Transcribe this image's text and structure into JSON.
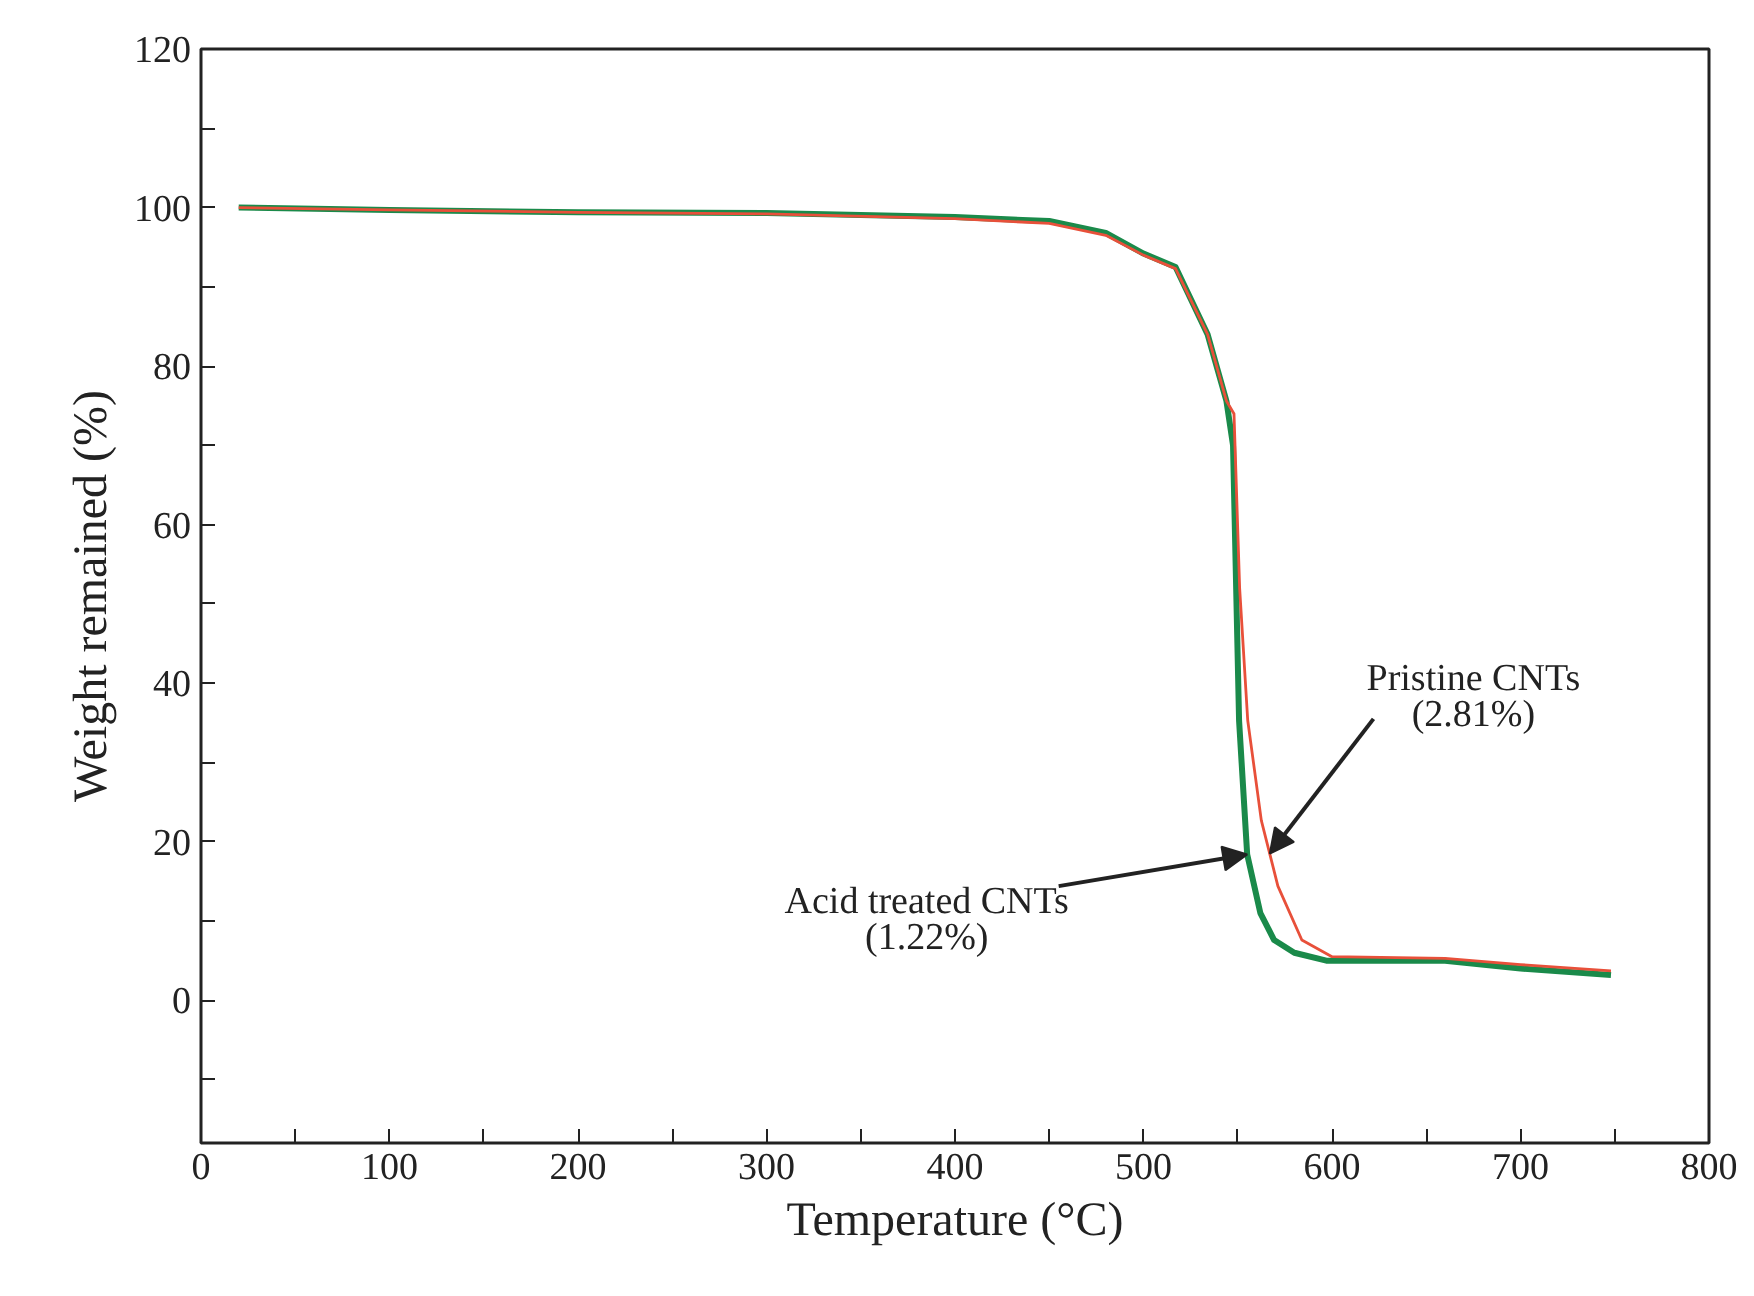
{
  "chart_data": {
    "type": "line",
    "xlabel": "Temperature (°C)",
    "ylabel": "Weight remained (%)",
    "xlim": [
      0,
      800
    ],
    "ylim": [
      -18,
      120
    ],
    "xticks": [
      0,
      {
        "value": 50,
        "label": null
      },
      100,
      {
        "value": 150,
        "label": null
      },
      200,
      {
        "value": 250,
        "label": null
      },
      300,
      {
        "value": 350,
        "label": null
      },
      400,
      {
        "value": 450,
        "label": null
      },
      500,
      {
        "value": 550,
        "label": null
      },
      600,
      {
        "value": 650,
        "label": null
      },
      700,
      {
        "value": 750,
        "label": null
      },
      800
    ],
    "yticks": [
      {
        "value": -10,
        "label": null
      },
      0,
      {
        "value": 10,
        "label": null
      },
      20,
      {
        "value": 30,
        "label": null
      },
      40,
      {
        "value": 50,
        "label": null
      },
      60,
      {
        "value": 70,
        "label": null
      },
      80,
      {
        "value": 90,
        "label": null
      },
      100,
      {
        "value": 110,
        "label": null
      },
      120
    ],
    "grid": false,
    "line_style": "solid",
    "marker": "none",
    "series": [
      {
        "color": "#e8503a",
        "x": [
          20,
          100,
          200,
          300,
          400,
          450,
          480,
          500,
          517,
          534,
          544,
          548,
          551,
          555.3,
          562.5,
          571.3,
          584,
          600,
          660,
          700,
          748
        ],
        "values": [
          100,
          99.7,
          99.4,
          99.2,
          98.6,
          98,
          96.5,
          94,
          92.3,
          84,
          75.6,
          74,
          52,
          35.3,
          22.7,
          14.4,
          7.6,
          5.5,
          5.3,
          4.5,
          3.7
        ]
      },
      {
        "color": "#1a8a4a",
        "x": [
          20,
          100,
          200,
          300,
          400,
          450,
          480,
          500,
          517,
          534,
          544,
          547.5,
          550.7,
          555,
          562,
          569.3,
          580,
          597,
          660,
          700,
          748
        ],
        "values": [
          100,
          99.7,
          99.4,
          99.3,
          98.8,
          98.3,
          96.8,
          94.2,
          92.5,
          84,
          75.6,
          70,
          35.3,
          18.4,
          11,
          7.6,
          6,
          5,
          5,
          4,
          3.2
        ]
      }
    ],
    "annotations": [
      {
        "text": "Pristine CNTs\n(2.81%)",
        "x": 567,
        "y": 18.5
      },
      {
        "text": "Acid treated CNTs\n(1.22%)",
        "x": 555,
        "y": 18.4
      }
    ]
  }
}
